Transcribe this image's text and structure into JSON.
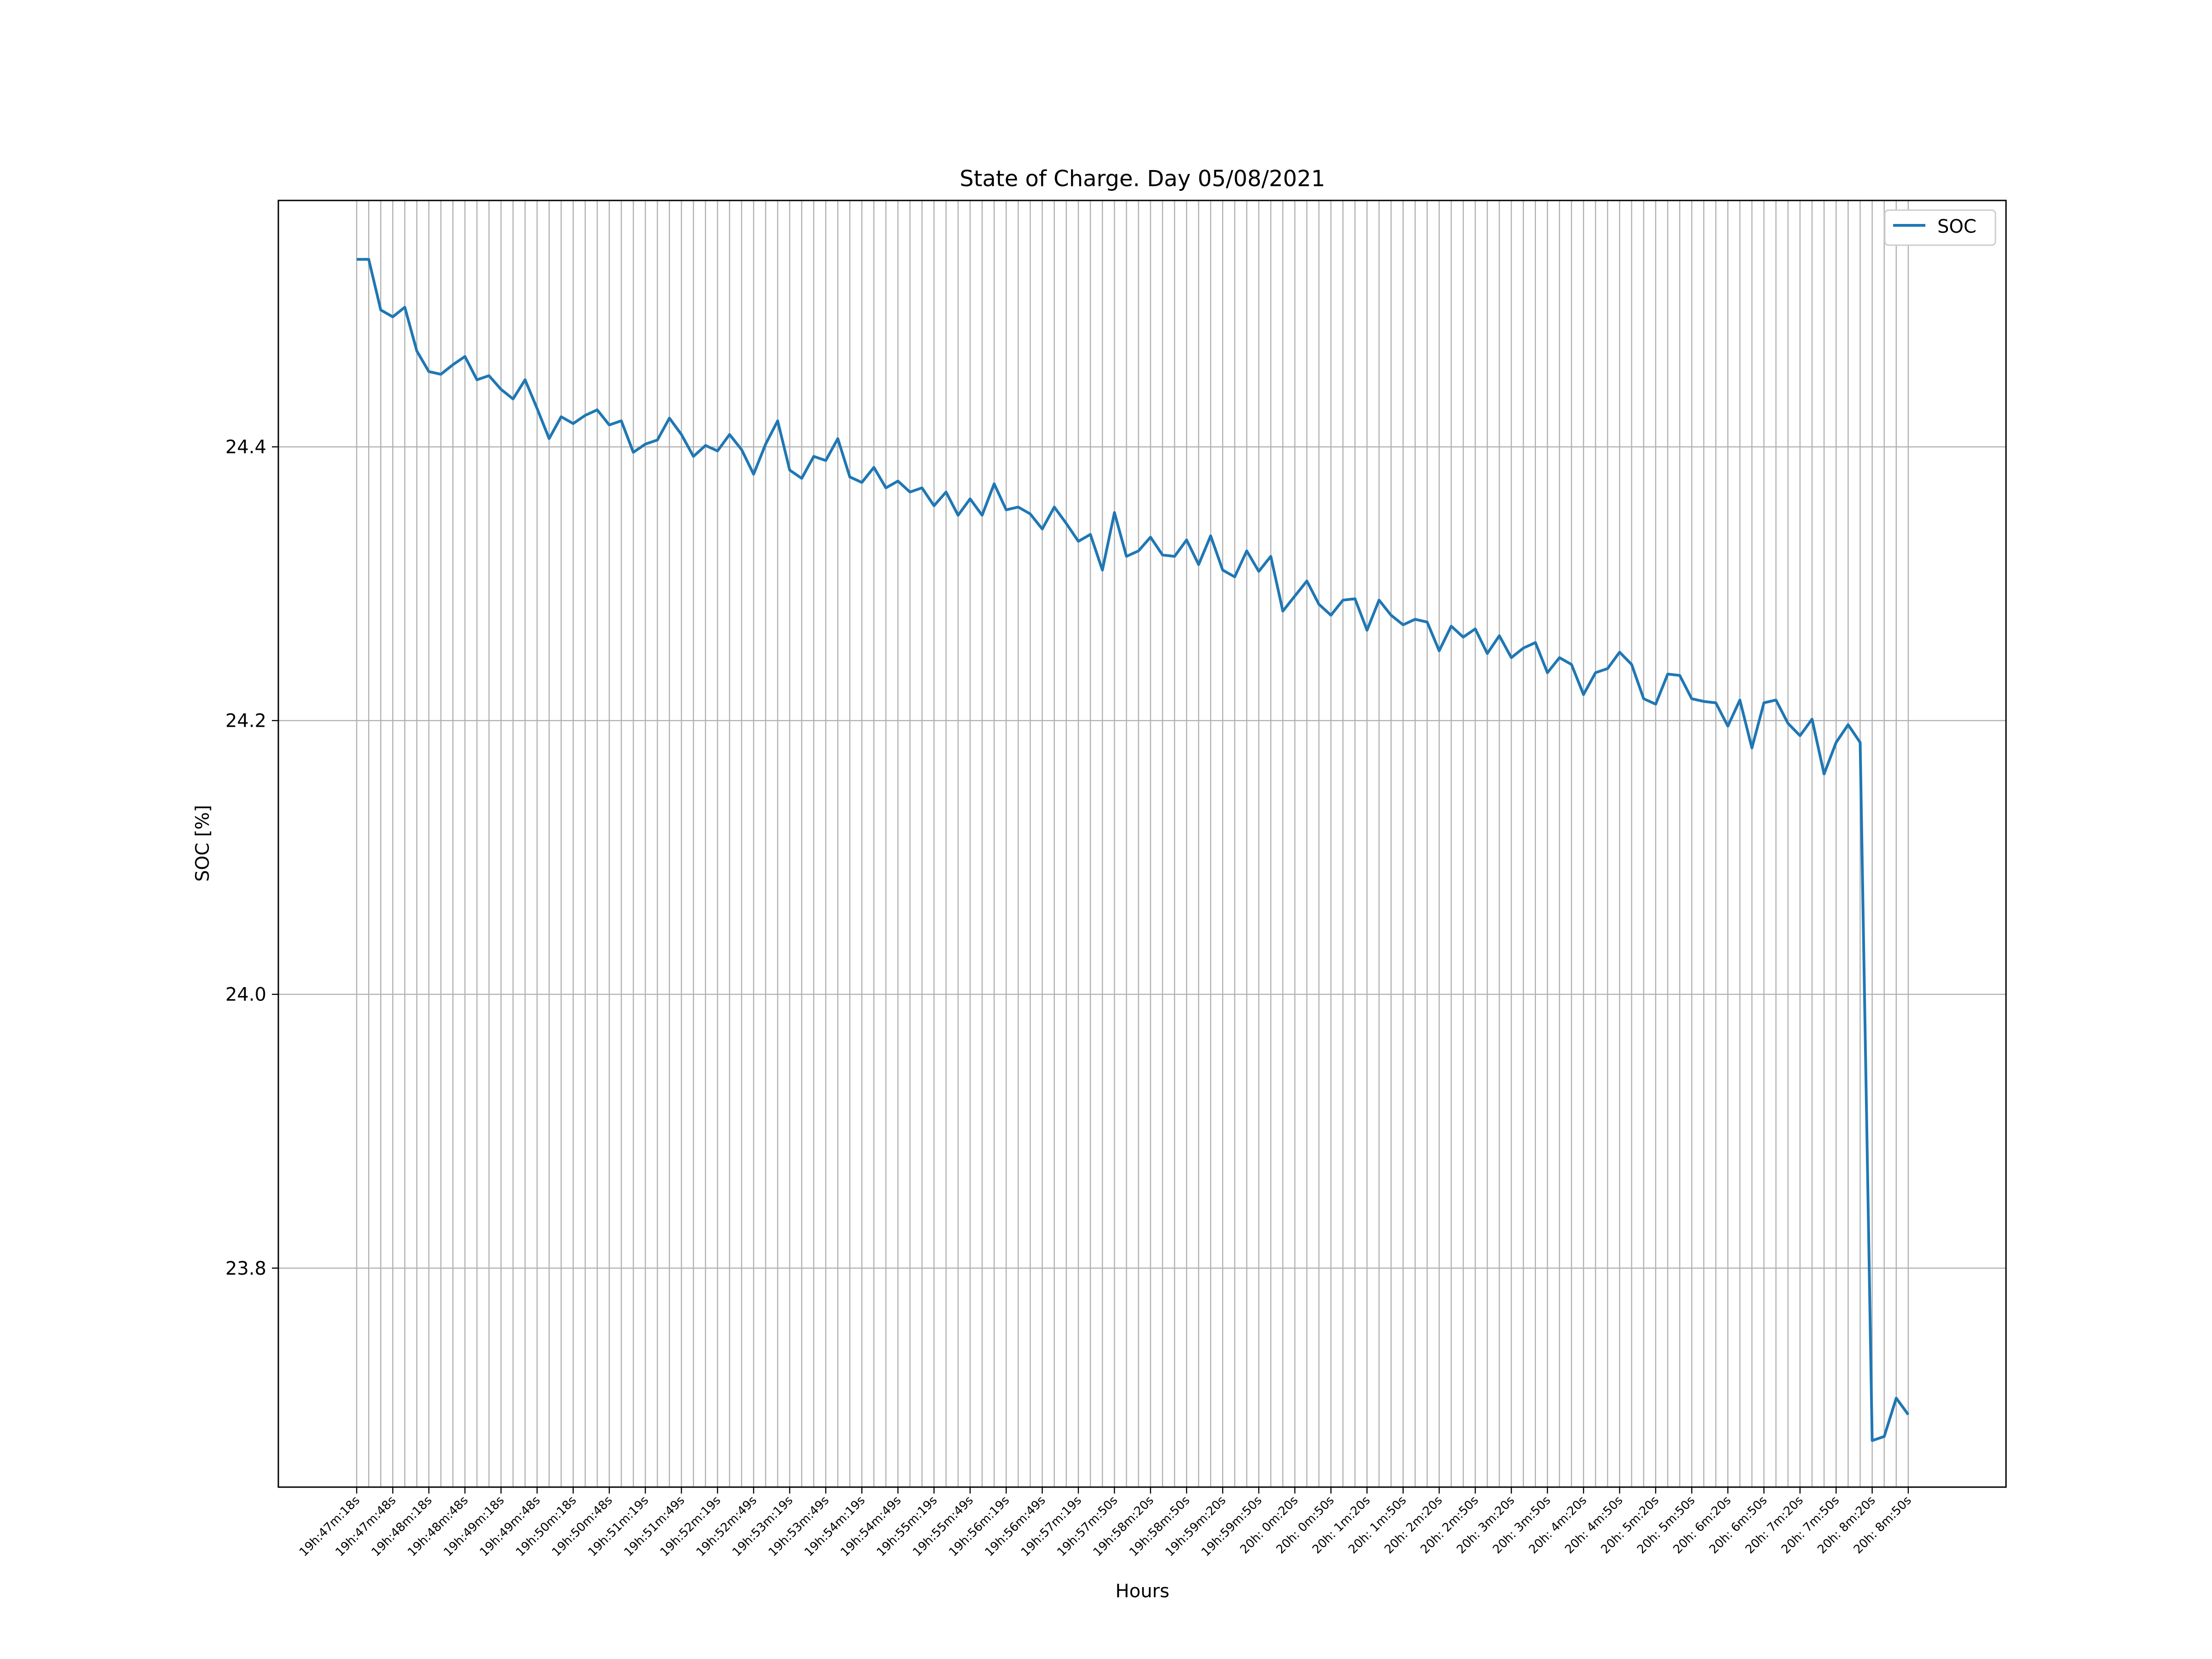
{
  "chart_data": {
    "type": "line",
    "title": "State of Charge. Day 05/08/2021",
    "xlabel": "Hours",
    "ylabel": "SOC [%]",
    "ylim": [
      23.64,
      24.58
    ],
    "yticks": [
      23.8,
      24.0,
      24.2,
      24.4
    ],
    "ytick_labels": [
      "23.8",
      "24.0",
      "24.2",
      "24.4"
    ],
    "grid": true,
    "legend_position": "top-right",
    "line_color": "#1f77b4",
    "x_tick_labels": [
      "19h:47m:18s",
      "19h:47m:48s",
      "19h:48m:18s",
      "19h:48m:48s",
      "19h:49m:18s",
      "19h:49m:48s",
      "19h:50m:18s",
      "19h:50m:48s",
      "19h:51m:19s",
      "19h:51m:49s",
      "19h:52m:19s",
      "19h:52m:49s",
      "19h:53m:19s",
      "19h:53m:49s",
      "19h:54m:19s",
      "19h:54m:49s",
      "19h:55m:19s",
      "19h:55m:49s",
      "19h:56m:19s",
      "19h:56m:49s",
      "19h:57m:19s",
      "19h:57m:50s",
      "19h:58m:20s",
      "19h:58m:50s",
      "19h:59m:20s",
      "19h:59m:50s",
      "20h: 0m:20s",
      "20h: 0m:50s",
      "20h: 1m:20s",
      "20h: 1m:50s",
      "20h: 2m:20s",
      "20h: 2m:50s",
      "20h: 3m:20s",
      "20h: 3m:50s",
      "20h: 4m:20s",
      "20h: 4m:50s",
      "20h: 5m:20s",
      "20h: 5m:50s",
      "20h: 6m:20s",
      "20h: 6m:50s",
      "20h: 7m:20s",
      "20h: 7m:50s",
      "20h: 8m:20s",
      "20h: 8m:50s"
    ],
    "series": [
      {
        "name": "SOC",
        "values": [
          24.537,
          24.537,
          24.5,
          24.495,
          24.502,
          24.47,
          24.455,
          24.453,
          24.46,
          24.466,
          24.449,
          24.452,
          24.442,
          24.435,
          24.449,
          24.428,
          24.406,
          24.422,
          24.417,
          24.423,
          24.427,
          24.416,
          24.419,
          24.396,
          24.402,
          24.405,
          24.421,
          24.409,
          24.393,
          24.401,
          24.397,
          24.409,
          24.398,
          24.38,
          24.402,
          24.419,
          24.383,
          24.377,
          24.393,
          24.39,
          24.406,
          24.378,
          24.374,
          24.385,
          24.37,
          24.375,
          24.367,
          24.37,
          24.357,
          24.367,
          24.35,
          24.362,
          24.35,
          24.373,
          24.354,
          24.356,
          24.351,
          24.34,
          24.356,
          24.344,
          24.331,
          24.336,
          24.31,
          24.352,
          24.32,
          24.324,
          24.334,
          24.321,
          24.32,
          24.332,
          24.314,
          24.335,
          24.31,
          24.305,
          24.324,
          24.309,
          24.32,
          24.28,
          24.291,
          24.302,
          24.285,
          24.277,
          24.288,
          24.289,
          24.266,
          24.288,
          24.277,
          24.27,
          24.274,
          24.272,
          24.251,
          24.269,
          24.261,
          24.267,
          24.249,
          24.262,
          24.246,
          24.253,
          24.257,
          24.235,
          24.246,
          24.241,
          24.219,
          24.235,
          24.238,
          24.25,
          24.241,
          24.216,
          24.212,
          24.234,
          24.233,
          24.216,
          24.214,
          24.213,
          24.196,
          24.215,
          24.18,
          24.213,
          24.215,
          24.198,
          24.189,
          24.201,
          24.161,
          24.184,
          24.197,
          24.184,
          23.674,
          23.677,
          23.705,
          23.693
        ]
      }
    ]
  }
}
